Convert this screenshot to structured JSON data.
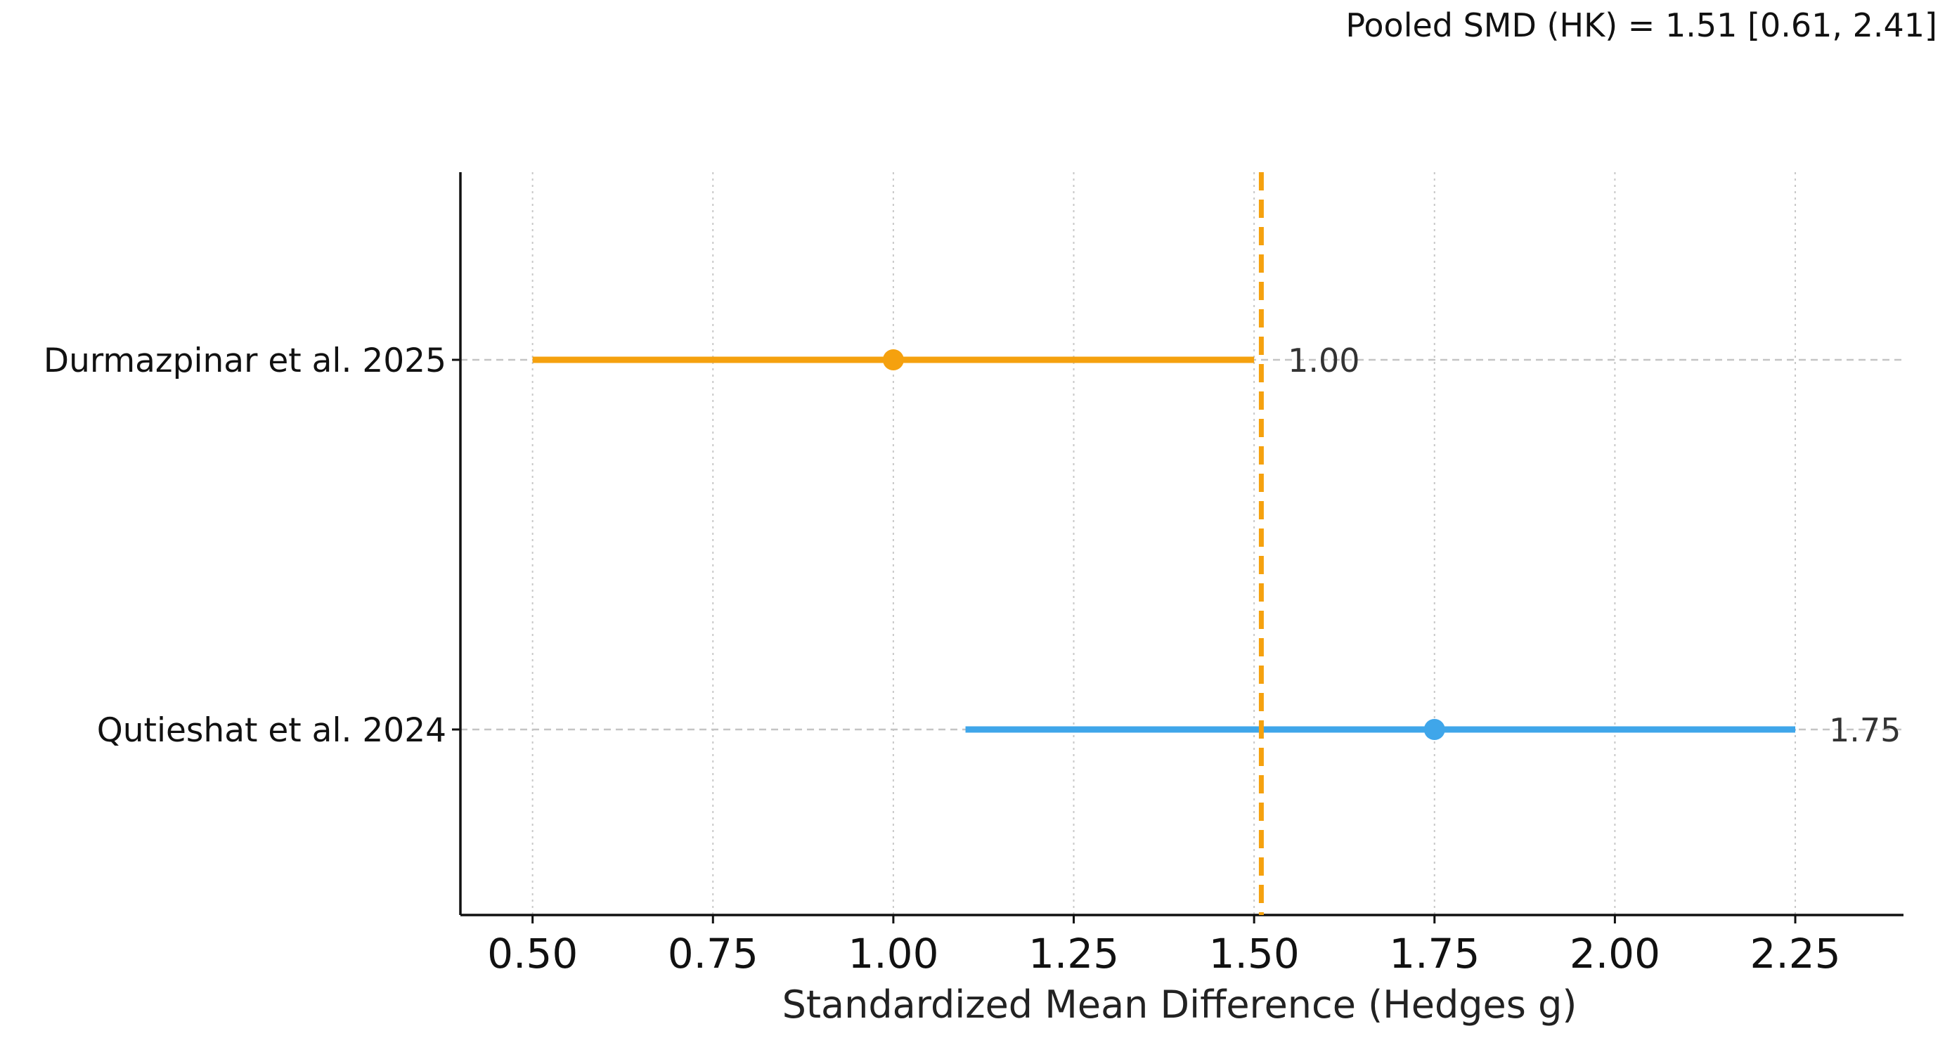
{
  "chart_data": {
    "type": "forest",
    "title": "Pooled SMD (HK) = 1.51 [0.61, 2.41]",
    "xlabel": "Standardized Mean Difference (Hedges g)",
    "ylabel": "",
    "xlim": [
      0.4,
      2.4
    ],
    "x_ticks": [
      0.5,
      0.75,
      1.0,
      1.25,
      1.5,
      1.75,
      2.0,
      2.25
    ],
    "x_tick_labels": [
      "0.50",
      "0.75",
      "1.00",
      "1.25",
      "1.50",
      "1.75",
      "2.00",
      "2.25"
    ],
    "grid": {
      "x": true,
      "y": true
    },
    "pooled": {
      "estimate": 1.51,
      "ci_low": 0.61,
      "ci_high": 2.41,
      "color": "#F5A10E"
    },
    "studies": [
      {
        "label": "Durmazpinar et al. 2025",
        "estimate": 1.0,
        "ci_low": 0.5,
        "ci_high": 1.5,
        "value_label": "1.00",
        "color": "#F5A10E"
      },
      {
        "label": "Qutieshat et al. 2024",
        "estimate": 1.75,
        "ci_low": 1.1,
        "ci_high": 2.25,
        "value_label": "1.75",
        "color": "#3FA6EA"
      }
    ]
  }
}
